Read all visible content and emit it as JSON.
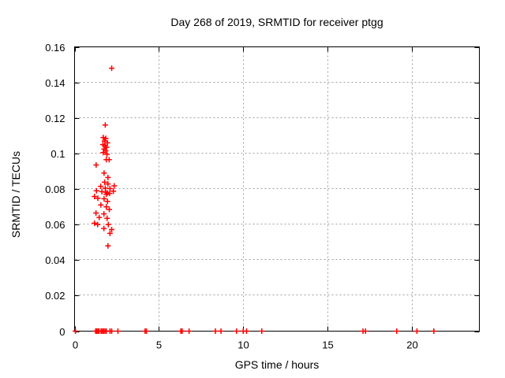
{
  "chart_data": {
    "type": "scatter",
    "title": "Day 268 of 2019, SRMTID for receiver ptgg",
    "xlabel": "GPS time / hours",
    "ylabel": "SRMTID / TECUs",
    "xlim": [
      0,
      24
    ],
    "ylim": [
      0,
      0.16
    ],
    "xticks": {
      "values": [
        0,
        5,
        10,
        15,
        20
      ],
      "labels": [
        "0",
        "5",
        "10",
        "15",
        "20"
      ]
    },
    "yticks": {
      "values": [
        0,
        0.02,
        0.04,
        0.06,
        0.08,
        0.1,
        0.12,
        0.14,
        0.16
      ],
      "labels": [
        "0",
        "0.02",
        "0.04",
        "0.06",
        "0.08",
        "0.1",
        "0.12",
        "0.14",
        "0.16"
      ]
    },
    "grid": true,
    "legend": false,
    "marker": {
      "shape": "plus",
      "size": 7,
      "stroke_width": 1.5
    },
    "series": [
      {
        "name": "SRMTID",
        "points": [
          [
            2.2,
            0.148
          ],
          [
            1.82,
            0.116
          ],
          [
            1.7,
            0.109
          ],
          [
            1.85,
            0.1085
          ],
          [
            1.78,
            0.107
          ],
          [
            1.95,
            0.106
          ],
          [
            1.68,
            0.105
          ],
          [
            1.82,
            0.1045
          ],
          [
            1.9,
            0.1035
          ],
          [
            1.75,
            0.1025
          ],
          [
            1.85,
            0.1015
          ],
          [
            1.7,
            0.1005
          ],
          [
            1.92,
            0.0995
          ],
          [
            1.88,
            0.0965
          ],
          [
            2.05,
            0.0965
          ],
          [
            1.28,
            0.0935
          ],
          [
            1.75,
            0.089
          ],
          [
            1.98,
            0.0865
          ],
          [
            1.78,
            0.0838
          ],
          [
            1.98,
            0.0828
          ],
          [
            2.35,
            0.0818
          ],
          [
            1.55,
            0.0815
          ],
          [
            1.82,
            0.0805
          ],
          [
            2.1,
            0.0802
          ],
          [
            1.3,
            0.079
          ],
          [
            2.3,
            0.0788
          ],
          [
            1.62,
            0.0785
          ],
          [
            1.85,
            0.0782
          ],
          [
            1.95,
            0.0778
          ],
          [
            2.08,
            0.0775
          ],
          [
            1.88,
            0.077
          ],
          [
            1.18,
            0.0758
          ],
          [
            1.38,
            0.0748
          ],
          [
            1.75,
            0.0745
          ],
          [
            1.95,
            0.073
          ],
          [
            1.56,
            0.071
          ],
          [
            1.88,
            0.07
          ],
          [
            2.06,
            0.0685
          ],
          [
            1.27,
            0.0665
          ],
          [
            1.74,
            0.066
          ],
          [
            1.46,
            0.064
          ],
          [
            1.93,
            0.0635
          ],
          [
            1.18,
            0.0608
          ],
          [
            1.37,
            0.06
          ],
          [
            2.0,
            0.06
          ],
          [
            1.74,
            0.0578
          ],
          [
            2.2,
            0.0572
          ],
          [
            2.1,
            0.055
          ],
          [
            1.98,
            0.048
          ],
          [
            0.05,
            0
          ],
          [
            1.25,
            0
          ],
          [
            1.31,
            0
          ],
          [
            1.38,
            0
          ],
          [
            1.45,
            0
          ],
          [
            1.57,
            0
          ],
          [
            1.64,
            0
          ],
          [
            1.72,
            0
          ],
          [
            1.8,
            0
          ],
          [
            1.88,
            0
          ],
          [
            2.1,
            0
          ],
          [
            2.2,
            0
          ],
          [
            2.57,
            0
          ],
          [
            4.18,
            0
          ],
          [
            4.26,
            0
          ],
          [
            6.3,
            0
          ],
          [
            6.38,
            0
          ],
          [
            6.79,
            0
          ],
          [
            8.35,
            0
          ],
          [
            8.68,
            0
          ],
          [
            9.6,
            0
          ],
          [
            10.0,
            0
          ],
          [
            10.2,
            0
          ],
          [
            11.1,
            0
          ],
          [
            17.1,
            0
          ],
          [
            17.25,
            0
          ],
          [
            19.1,
            0
          ],
          [
            20.3,
            0
          ],
          [
            21.3,
            0
          ]
        ]
      }
    ]
  },
  "colors": {
    "marker": "#ff0000",
    "grid": "#a0a0a0",
    "border": "#000000",
    "text": "#000000",
    "background": "#ffffff"
  }
}
